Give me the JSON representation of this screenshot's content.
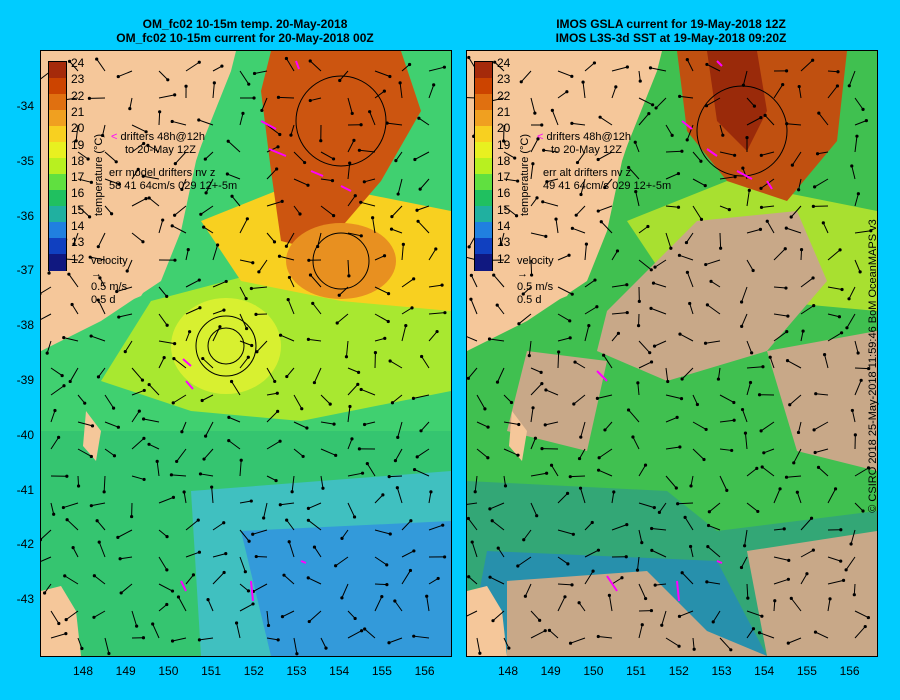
{
  "left_panel": {
    "title_line1": "OM_fc02 10-15m temp. 20-May-2018",
    "title_line2": "OM_fc02 10-15m current for 20-May-2018 00Z",
    "legend_drifters_line1": "drifters 48h@12h",
    "legend_drifters_line2": "to 20-May 12Z",
    "legend_err_line1": "err model drifters nv z",
    "legend_err_line2": "58 41 64cm/s 029 12+-5m",
    "velocity_label": "velocity",
    "velocity_scale1": "0.5 m/s",
    "velocity_scale2": "0.5 d"
  },
  "right_panel": {
    "title_line1": "IMOS GSLA current for 19-May-2018 12Z",
    "title_line2": "IMOS L3S-3d SST at 19-May-2018 09:20Z",
    "legend_drifters_line1": "drifters 48h@12h",
    "legend_drifters_line2": "to 20-May 12Z",
    "legend_err_line1": "err alt drifters nv z",
    "legend_err_line2": "49 41 64cm/s 029 12+-5m",
    "velocity_label": "velocity",
    "velocity_scale1": "0.5 m/s",
    "velocity_scale2": "0.5 d"
  },
  "colorbar": {
    "unit_label": "temperature (°C)",
    "ticks": [
      "24",
      "23",
      "22",
      "21",
      "20",
      "19",
      "18",
      "17",
      "16",
      "15",
      "14",
      "13",
      "12"
    ],
    "colors": [
      "#a52a0a",
      "#cc4400",
      "#e07010",
      "#f0a020",
      "#f8d020",
      "#e8f020",
      "#b8f020",
      "#60e040",
      "#20c060",
      "#20b0a0",
      "#2080e0",
      "#1040c0",
      "#101880"
    ]
  },
  "axes": {
    "lat_ticks": [
      "-34",
      "-35",
      "-36",
      "-37",
      "-38",
      "-39",
      "-40",
      "-41",
      "-42",
      "-43"
    ],
    "lon_ticks": [
      "148",
      "149",
      "150",
      "151",
      "152",
      "153",
      "154",
      "155",
      "156"
    ]
  },
  "credit": "© CSIRO 2018   25-May-2018 11:59:46 BoM OceanMAPS v3",
  "colors": {
    "background": "#00ccff",
    "land": "#f5c79a",
    "cloud": "#c8a888",
    "drifter": "#ff00ff"
  }
}
